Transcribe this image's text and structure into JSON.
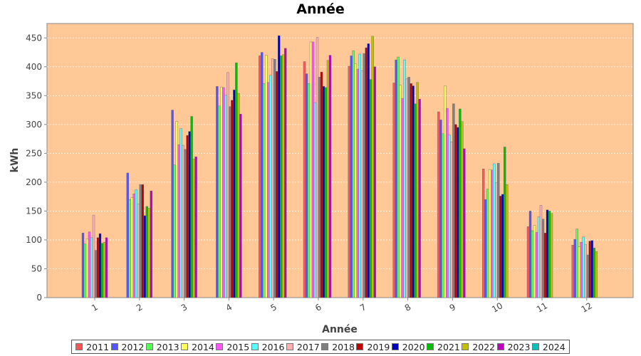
{
  "chart_data": {
    "type": "bar",
    "title": "Année",
    "xlabel": "Année",
    "ylabel": "kWh",
    "ylim": [
      0,
      475
    ],
    "yticks": [
      0,
      50,
      100,
      150,
      200,
      250,
      300,
      350,
      400,
      450
    ],
    "categories": [
      "1",
      "2",
      "3",
      "4",
      "5",
      "6",
      "7",
      "8",
      "9",
      "10",
      "11",
      "12"
    ],
    "grid": true,
    "legend": "bottom",
    "background_color": "#ffc896",
    "series": [
      {
        "name": "2011",
        "color": "#ff5555",
        "values": [
          0,
          0,
          0,
          0,
          419,
          409,
          401,
          372,
          322,
          223,
          123,
          91
        ]
      },
      {
        "name": "2012",
        "color": "#5555ff",
        "values": [
          112,
          216,
          325,
          366,
          425,
          388,
          419,
          412,
          308,
          170,
          150,
          101
        ]
      },
      {
        "name": "2013",
        "color": "#55ff55",
        "values": [
          93,
          170,
          230,
          332,
          371,
          371,
          428,
          417,
          284,
          188,
          116,
          119
        ]
      },
      {
        "name": "2014",
        "color": "#ffff55",
        "values": [
          102,
          173,
          305,
          365,
          420,
          443,
          405,
          368,
          367,
          222,
          125,
          88
        ]
      },
      {
        "name": "2015",
        "color": "#ff55ff",
        "values": [
          114,
          180,
          265,
          364,
          373,
          443,
          396,
          345,
          328,
          221,
          113,
          96
        ]
      },
      {
        "name": "2016",
        "color": "#55ffff",
        "values": [
          104,
          187,
          293,
          351,
          385,
          338,
          422,
          412,
          282,
          232,
          140,
          105
        ]
      },
      {
        "name": "2017",
        "color": "#ffafaf",
        "values": [
          143,
          162,
          264,
          390,
          414,
          451,
          393,
          379,
          270,
          199,
          160,
          92
        ]
      },
      {
        "name": "2018",
        "color": "#808080",
        "values": [
          82,
          196,
          257,
          331,
          413,
          382,
          423,
          382,
          336,
          233,
          136,
          74
        ]
      },
      {
        "name": "2019",
        "color": "#c00000",
        "values": [
          104,
          196,
          281,
          342,
          392,
          391,
          433,
          371,
          300,
          176,
          112,
          98
        ]
      },
      {
        "name": "2020",
        "color": "#0000c0",
        "values": [
          111,
          142,
          288,
          360,
          454,
          366,
          440,
          367,
          295,
          179,
          152,
          99
        ]
      },
      {
        "name": "2021",
        "color": "#00c000",
        "values": [
          94,
          158,
          314,
          407,
          419,
          364,
          378,
          336,
          327,
          261,
          150,
          86
        ]
      },
      {
        "name": "2022",
        "color": "#c0c000",
        "values": [
          96,
          155,
          240,
          354,
          421,
          411,
          453,
          373,
          305,
          196,
          146,
          80
        ]
      },
      {
        "name": "2023",
        "color": "#c000c0",
        "values": [
          104,
          185,
          244,
          318,
          432,
          420,
          400,
          344,
          258,
          0,
          0,
          0
        ]
      },
      {
        "name": "2024",
        "color": "#00c0c0",
        "values": [
          0,
          0,
          0,
          0,
          0,
          0,
          0,
          0,
          0,
          0,
          0,
          0
        ]
      }
    ]
  }
}
